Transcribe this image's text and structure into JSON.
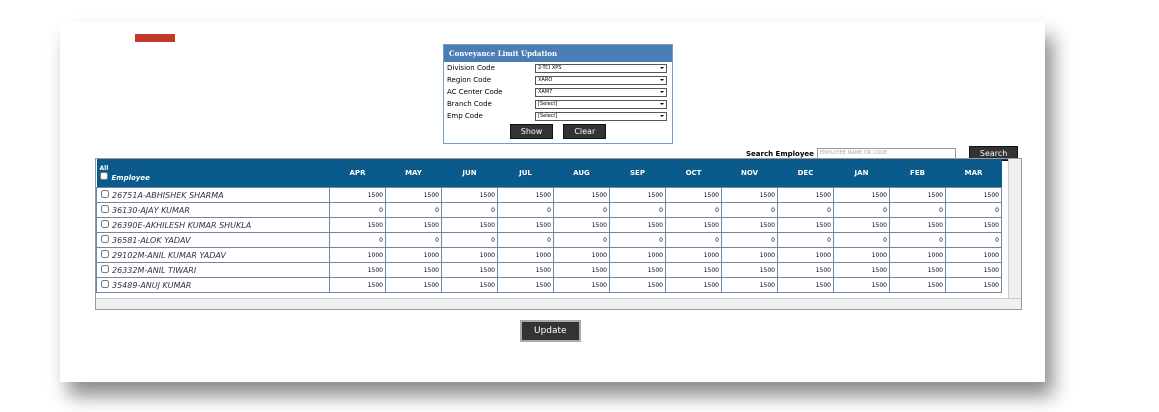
{
  "form": {
    "title": "Conveyance Limit Updation",
    "fields": [
      {
        "label": "Division Code",
        "value": "2-TCI XPS"
      },
      {
        "label": "Region Code",
        "value": "XARO"
      },
      {
        "label": "AC Center Code",
        "value": "XAM7"
      },
      {
        "label": "Branch Code",
        "value": "[Select]"
      },
      {
        "label": "Emp Code",
        "value": "[Select]"
      }
    ],
    "buttons": [
      "Show",
      "Clear"
    ]
  },
  "search": {
    "label": "Search Employee",
    "placeholder": "EMPLOYEE NAME OR CODE",
    "button": "Search"
  },
  "table": {
    "all_label": "All",
    "employee_header": "Employee",
    "months": [
      "APR",
      "MAY",
      "JUN",
      "JUL",
      "AUG",
      "SEP",
      "OCT",
      "NOV",
      "DEC",
      "JAN",
      "FEB",
      "MAR"
    ],
    "rows": [
      {
        "employee": "26751A-ABHISHEK SHARMA",
        "values": [
          1500,
          1500,
          1500,
          1500,
          1500,
          1500,
          1500,
          1500,
          1500,
          1500,
          1500,
          1500
        ]
      },
      {
        "employee": "36130-AJAY KUMAR",
        "values": [
          0,
          0,
          0,
          0,
          0,
          0,
          0,
          0,
          0,
          0,
          0,
          0
        ]
      },
      {
        "employee": "26390E-AKHILESH KUMAR SHUKLA",
        "values": [
          1500,
          1500,
          1500,
          1500,
          1500,
          1500,
          1500,
          1500,
          1500,
          1500,
          1500,
          1500
        ]
      },
      {
        "employee": "36581-ALOK YADAV",
        "values": [
          0,
          0,
          0,
          0,
          0,
          0,
          0,
          0,
          0,
          0,
          0,
          0
        ]
      },
      {
        "employee": "29102M-ANIL KUMAR YADAV",
        "values": [
          1000,
          1000,
          1000,
          1000,
          1000,
          1000,
          1000,
          1000,
          1000,
          1000,
          1000,
          1000
        ]
      },
      {
        "employee": "26332M-ANIL TIWARI",
        "values": [
          1500,
          1500,
          1500,
          1500,
          1500,
          1500,
          1500,
          1500,
          1500,
          1500,
          1500,
          1500
        ]
      },
      {
        "employee": "35489-ANUJ KUMAR",
        "values": [
          1500,
          1500,
          1500,
          1500,
          1500,
          1500,
          1500,
          1500,
          1500,
          1500,
          1500,
          1500
        ]
      }
    ]
  },
  "footer": {
    "button": "Update"
  }
}
